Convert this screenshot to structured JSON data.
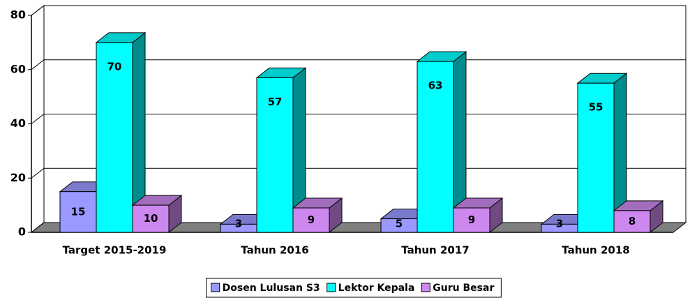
{
  "chart_data": {
    "type": "bar3d",
    "categories": [
      "Target 2015-2019",
      "Tahun 2016",
      "Tahun 2017",
      "Tahun 2018"
    ],
    "series": [
      {
        "name": "Dosen Lulusan S3",
        "color": "#9999ff",
        "values": [
          15,
          3,
          5,
          3
        ]
      },
      {
        "name": "Lektor Kepala",
        "color": "#00ffff",
        "values": [
          70,
          57,
          63,
          55
        ]
      },
      {
        "name": "Guru Besar",
        "color": "#cc88ee",
        "values": [
          10,
          9,
          9,
          8
        ]
      }
    ],
    "ylim": [
      0,
      80
    ],
    "yticks": [
      0,
      20,
      40,
      60,
      80
    ],
    "grid": true,
    "legend": "bottom"
  }
}
